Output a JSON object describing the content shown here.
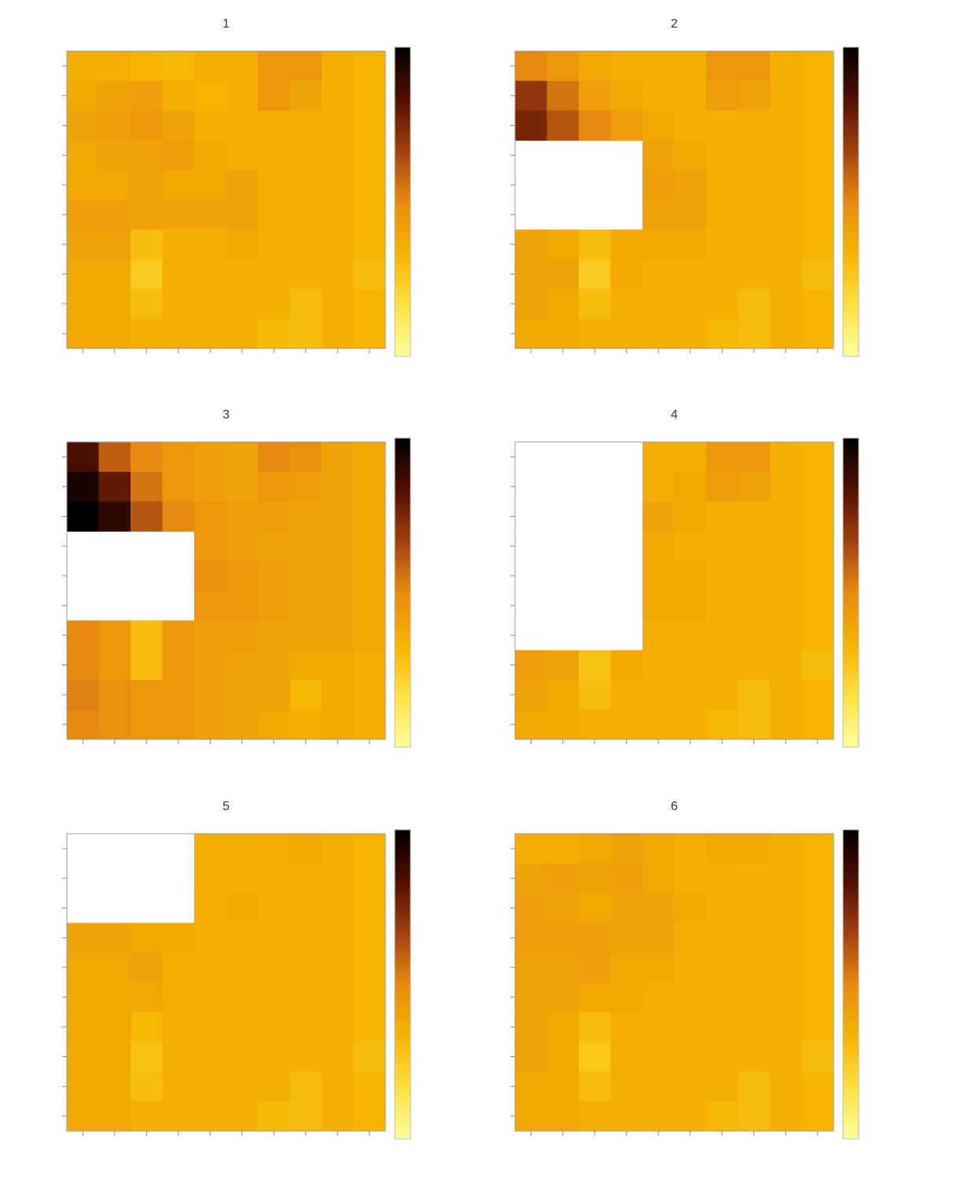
{
  "chart_data": [
    {
      "type": "heatmap",
      "title": "1",
      "x": [
        null,
        null,
        null,
        null,
        null,
        null,
        null,
        null,
        null,
        null
      ],
      "y": [
        null,
        null,
        null,
        null,
        null,
        null,
        null,
        null,
        null,
        null
      ],
      "zlim": [
        0,
        1
      ],
      "colors": [
        "#ffffa0",
        "#ffe040",
        "#f5b400",
        "#e88a10",
        "#a04010",
        "#501000",
        "#000000"
      ],
      "z": [
        [
          0.35,
          0.35,
          0.33,
          0.32,
          0.35,
          0.35,
          0.45,
          0.45,
          0.35,
          0.33
        ],
        [
          0.38,
          0.4,
          0.42,
          0.35,
          0.33,
          0.35,
          0.45,
          0.4,
          0.35,
          0.33
        ],
        [
          0.4,
          0.42,
          0.45,
          0.4,
          0.35,
          0.35,
          0.35,
          0.35,
          0.35,
          0.33
        ],
        [
          0.38,
          0.4,
          0.4,
          0.42,
          0.38,
          0.35,
          0.35,
          0.35,
          0.35,
          0.33
        ],
        [
          0.38,
          0.38,
          0.4,
          0.38,
          0.38,
          0.4,
          0.35,
          0.35,
          0.35,
          0.33
        ],
        [
          0.42,
          0.42,
          0.4,
          0.4,
          0.4,
          0.4,
          0.35,
          0.35,
          0.35,
          0.33
        ],
        [
          0.4,
          0.4,
          0.3,
          0.35,
          0.35,
          0.38,
          0.35,
          0.35,
          0.35,
          0.33
        ],
        [
          0.38,
          0.38,
          0.25,
          0.35,
          0.35,
          0.35,
          0.35,
          0.35,
          0.35,
          0.3
        ],
        [
          0.38,
          0.38,
          0.3,
          0.35,
          0.35,
          0.35,
          0.35,
          0.3,
          0.35,
          0.33
        ],
        [
          0.38,
          0.38,
          0.35,
          0.35,
          0.35,
          0.35,
          0.32,
          0.3,
          0.35,
          0.33
        ]
      ]
    },
    {
      "type": "heatmap",
      "title": "2",
      "x": [
        null,
        null,
        null,
        null,
        null,
        null,
        null,
        null,
        null,
        null
      ],
      "y": [
        null,
        null,
        null,
        null,
        null,
        null,
        null,
        null,
        null,
        null
      ],
      "zlim": [
        0,
        1
      ],
      "colors": [
        "#ffffa0",
        "#ffe040",
        "#f5b400",
        "#e88a10",
        "#a04010",
        "#501000",
        "#000000"
      ],
      "z": [
        [
          0.5,
          0.45,
          0.38,
          0.35,
          0.35,
          0.35,
          0.45,
          0.45,
          0.35,
          0.33
        ],
        [
          0.7,
          0.55,
          0.42,
          0.38,
          0.35,
          0.35,
          0.42,
          0.4,
          0.35,
          0.33
        ],
        [
          0.75,
          0.62,
          0.5,
          0.42,
          0.38,
          0.35,
          0.35,
          0.35,
          0.35,
          0.33
        ],
        [
          null,
          null,
          null,
          null,
          0.4,
          0.38,
          0.35,
          0.35,
          0.35,
          0.33
        ],
        [
          null,
          null,
          null,
          null,
          0.42,
          0.4,
          0.35,
          0.35,
          0.35,
          0.33
        ],
        [
          null,
          null,
          null,
          null,
          0.4,
          0.4,
          0.35,
          0.35,
          0.35,
          0.33
        ],
        [
          0.4,
          0.38,
          0.3,
          0.38,
          0.38,
          0.38,
          0.35,
          0.35,
          0.35,
          0.33
        ],
        [
          0.4,
          0.4,
          0.25,
          0.38,
          0.35,
          0.35,
          0.35,
          0.35,
          0.35,
          0.3
        ],
        [
          0.4,
          0.38,
          0.3,
          0.35,
          0.35,
          0.35,
          0.35,
          0.3,
          0.35,
          0.33
        ],
        [
          0.38,
          0.38,
          0.35,
          0.35,
          0.35,
          0.35,
          0.32,
          0.3,
          0.35,
          0.33
        ]
      ]
    },
    {
      "type": "heatmap",
      "title": "3",
      "x": [
        null,
        null,
        null,
        null,
        null,
        null,
        null,
        null,
        null,
        null
      ],
      "y": [
        null,
        null,
        null,
        null,
        null,
        null,
        null,
        null,
        null,
        null
      ],
      "zlim": [
        0,
        1
      ],
      "colors": [
        "#ffffa0",
        "#ffe040",
        "#f5b400",
        "#e88a10",
        "#a04010",
        "#501000",
        "#000000"
      ],
      "z": [
        [
          0.85,
          0.6,
          0.5,
          0.45,
          0.42,
          0.4,
          0.5,
          0.48,
          0.4,
          0.38
        ],
        [
          0.95,
          0.8,
          0.55,
          0.45,
          0.42,
          0.4,
          0.45,
          0.42,
          0.4,
          0.38
        ],
        [
          1,
          0.9,
          0.62,
          0.5,
          0.45,
          0.42,
          0.42,
          0.4,
          0.4,
          0.38
        ],
        [
          null,
          null,
          null,
          null,
          0.45,
          0.42,
          0.4,
          0.4,
          0.4,
          0.38
        ],
        [
          null,
          null,
          null,
          null,
          0.48,
          0.45,
          0.42,
          0.4,
          0.4,
          0.38
        ],
        [
          null,
          null,
          null,
          null,
          0.45,
          0.45,
          0.42,
          0.4,
          0.4,
          0.38
        ],
        [
          0.5,
          0.45,
          0.3,
          0.45,
          0.42,
          0.42,
          0.4,
          0.4,
          0.4,
          0.38
        ],
        [
          0.5,
          0.45,
          0.3,
          0.45,
          0.42,
          0.4,
          0.4,
          0.38,
          0.38,
          0.36
        ],
        [
          0.52,
          0.48,
          0.45,
          0.45,
          0.42,
          0.4,
          0.4,
          0.32,
          0.38,
          0.36
        ],
        [
          0.5,
          0.48,
          0.45,
          0.45,
          0.42,
          0.4,
          0.38,
          0.36,
          0.38,
          0.36
        ]
      ]
    },
    {
      "type": "heatmap",
      "title": "4",
      "x": [
        null,
        null,
        null,
        null,
        null,
        null,
        null,
        null,
        null,
        null
      ],
      "y": [
        null,
        null,
        null,
        null,
        null,
        null,
        null,
        null,
        null,
        null
      ],
      "zlim": [
        0,
        1
      ],
      "colors": [
        "#ffffa0",
        "#ffe040",
        "#f5b400",
        "#e88a10",
        "#a04010",
        "#501000",
        "#000000"
      ],
      "z": [
        [
          null,
          null,
          null,
          null,
          0.35,
          0.35,
          0.45,
          0.45,
          0.35,
          0.33
        ],
        [
          null,
          null,
          null,
          null,
          0.36,
          0.38,
          0.42,
          0.4,
          0.35,
          0.33
        ],
        [
          null,
          null,
          null,
          null,
          0.4,
          0.38,
          0.36,
          0.35,
          0.35,
          0.33
        ],
        [
          null,
          null,
          null,
          null,
          0.38,
          0.36,
          0.35,
          0.35,
          0.35,
          0.33
        ],
        [
          null,
          null,
          null,
          null,
          0.38,
          0.38,
          0.35,
          0.35,
          0.35,
          0.33
        ],
        [
          null,
          null,
          null,
          null,
          0.38,
          0.38,
          0.35,
          0.35,
          0.35,
          0.33
        ],
        [
          null,
          null,
          null,
          null,
          0.36,
          0.36,
          0.35,
          0.35,
          0.35,
          0.33
        ],
        [
          0.42,
          0.4,
          0.28,
          0.38,
          0.35,
          0.35,
          0.35,
          0.35,
          0.35,
          0.3
        ],
        [
          0.4,
          0.38,
          0.3,
          0.35,
          0.35,
          0.35,
          0.35,
          0.3,
          0.35,
          0.33
        ],
        [
          0.38,
          0.38,
          0.35,
          0.35,
          0.35,
          0.35,
          0.32,
          0.3,
          0.35,
          0.33
        ]
      ]
    },
    {
      "type": "heatmap",
      "title": "5",
      "x": [
        null,
        null,
        null,
        null,
        null,
        null,
        null,
        null,
        null,
        null
      ],
      "y": [
        null,
        null,
        null,
        null,
        null,
        null,
        null,
        null,
        null,
        null
      ],
      "zlim": [
        0,
        1
      ],
      "colors": [
        "#ffffa0",
        "#ffe040",
        "#f5b400",
        "#e88a10",
        "#a04010",
        "#501000",
        "#000000"
      ],
      "z": [
        [
          null,
          null,
          null,
          null,
          0.35,
          0.35,
          0.36,
          0.38,
          0.35,
          0.33
        ],
        [
          null,
          null,
          null,
          null,
          0.35,
          0.35,
          0.36,
          0.36,
          0.35,
          0.33
        ],
        [
          null,
          null,
          null,
          null,
          0.36,
          0.38,
          0.35,
          0.35,
          0.35,
          0.33
        ],
        [
          0.4,
          0.4,
          0.38,
          0.38,
          0.36,
          0.36,
          0.35,
          0.35,
          0.35,
          0.33
        ],
        [
          0.38,
          0.38,
          0.4,
          0.36,
          0.36,
          0.36,
          0.35,
          0.35,
          0.35,
          0.33
        ],
        [
          0.38,
          0.38,
          0.38,
          0.36,
          0.36,
          0.36,
          0.35,
          0.35,
          0.35,
          0.33
        ],
        [
          0.38,
          0.38,
          0.32,
          0.35,
          0.35,
          0.35,
          0.35,
          0.35,
          0.35,
          0.33
        ],
        [
          0.38,
          0.38,
          0.28,
          0.35,
          0.35,
          0.35,
          0.35,
          0.35,
          0.35,
          0.3
        ],
        [
          0.38,
          0.38,
          0.3,
          0.35,
          0.35,
          0.35,
          0.35,
          0.3,
          0.35,
          0.33
        ],
        [
          0.38,
          0.38,
          0.35,
          0.35,
          0.35,
          0.35,
          0.32,
          0.3,
          0.35,
          0.33
        ]
      ]
    },
    {
      "type": "heatmap",
      "title": "6",
      "x": [
        null,
        null,
        null,
        null,
        null,
        null,
        null,
        null,
        null,
        null
      ],
      "y": [
        null,
        null,
        null,
        null,
        null,
        null,
        null,
        null,
        null,
        null
      ],
      "zlim": [
        0,
        1
      ],
      "colors": [
        "#ffffa0",
        "#ffe040",
        "#f5b400",
        "#e88a10",
        "#a04010",
        "#501000",
        "#000000"
      ],
      "z": [
        [
          0.36,
          0.36,
          0.38,
          0.4,
          0.38,
          0.36,
          0.38,
          0.38,
          0.35,
          0.33
        ],
        [
          0.4,
          0.42,
          0.4,
          0.42,
          0.38,
          0.36,
          0.36,
          0.35,
          0.35,
          0.33
        ],
        [
          0.42,
          0.4,
          0.38,
          0.4,
          0.4,
          0.38,
          0.35,
          0.35,
          0.35,
          0.33
        ],
        [
          0.42,
          0.42,
          0.42,
          0.4,
          0.4,
          0.36,
          0.35,
          0.35,
          0.35,
          0.33
        ],
        [
          0.4,
          0.4,
          0.42,
          0.38,
          0.38,
          0.36,
          0.35,
          0.35,
          0.35,
          0.33
        ],
        [
          0.4,
          0.4,
          0.38,
          0.38,
          0.36,
          0.36,
          0.35,
          0.35,
          0.35,
          0.33
        ],
        [
          0.4,
          0.38,
          0.3,
          0.36,
          0.35,
          0.35,
          0.35,
          0.35,
          0.35,
          0.33
        ],
        [
          0.4,
          0.38,
          0.26,
          0.36,
          0.35,
          0.35,
          0.35,
          0.35,
          0.35,
          0.3
        ],
        [
          0.38,
          0.38,
          0.3,
          0.35,
          0.35,
          0.35,
          0.35,
          0.3,
          0.35,
          0.33
        ],
        [
          0.38,
          0.38,
          0.35,
          0.35,
          0.35,
          0.35,
          0.32,
          0.3,
          0.35,
          0.33
        ]
      ]
    }
  ]
}
